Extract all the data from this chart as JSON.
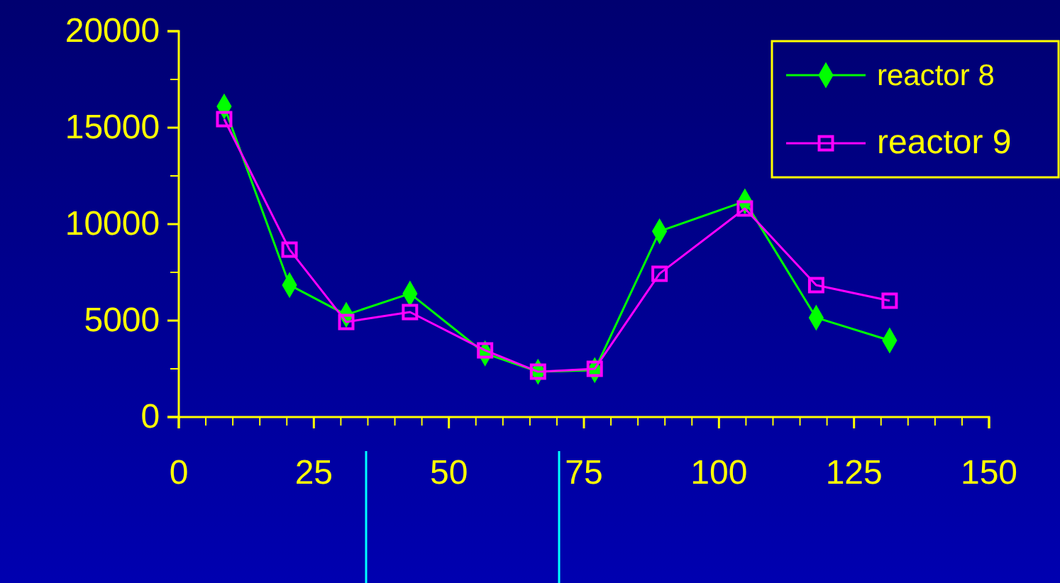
{
  "chart_data": {
    "type": "line",
    "xlim": [
      0,
      150
    ],
    "xticks": [
      0,
      25,
      50,
      75,
      100,
      125,
      150
    ],
    "ylim": [
      0,
      20000
    ],
    "yticks": [
      0,
      5000,
      10000,
      15000,
      20000
    ],
    "legend": "top right",
    "grid": false,
    "series": [
      {
        "name": "reactor 8",
        "color": "#00ff00",
        "marker": "diamond",
        "x": [
          8.4,
          20.5,
          31,
          42.8,
          56.7,
          66.5,
          77,
          89,
          104.8,
          118,
          131.6
        ],
        "values": [
          16100,
          6840,
          5300,
          6400,
          3300,
          2350,
          2430,
          9630,
          11180,
          5150,
          3970
        ]
      },
      {
        "name": "reactor 9",
        "color": "#ff00ff",
        "marker": "square",
        "x": [
          8.4,
          20.5,
          31,
          42.8,
          56.7,
          66.5,
          77,
          89,
          104.8,
          118,
          131.6
        ],
        "values": [
          15440,
          8680,
          4930,
          5440,
          3460,
          2350,
          2500,
          7430,
          10810,
          6840,
          6030
        ]
      }
    ]
  }
}
